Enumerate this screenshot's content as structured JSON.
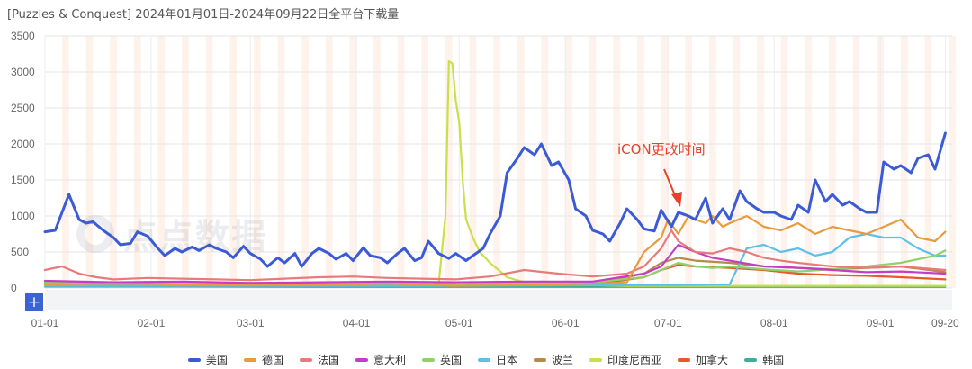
{
  "title": "[Puzzles & Conquest] 2024年01月01日-2024年09月22日全平台下载量",
  "watermark_text": "点点数据",
  "chart_data": {
    "type": "line",
    "title": "[Puzzles & Conquest] 2024年01月01日-2024年09月22日全平台下载量",
    "xlabel": "",
    "ylabel": "",
    "ylim": [
      0,
      3500
    ],
    "y_ticks": [
      0,
      500,
      1000,
      1500,
      2000,
      2500,
      3000,
      3500
    ],
    "x_ticks": [
      "01-01",
      "02-01",
      "03-01",
      "04-01",
      "05-01",
      "06-01",
      "07-01",
      "08-01",
      "09-01",
      "09-20"
    ],
    "x_tick_days": [
      0,
      31,
      60,
      91,
      121,
      152,
      182,
      213,
      244,
      263
    ],
    "x_days_range": [
      0,
      265
    ],
    "legend_position": "bottom",
    "grid": "horizontal+vertical, weekend bands shaded",
    "series": [
      {
        "name": "美国",
        "color": "#3b5bd6",
        "days": [
          0,
          3,
          5,
          7,
          10,
          12,
          14,
          17,
          20,
          22,
          25,
          27,
          30,
          33,
          35,
          38,
          40,
          43,
          45,
          48,
          50,
          53,
          55,
          58,
          60,
          63,
          65,
          68,
          70,
          73,
          75,
          78,
          80,
          83,
          85,
          88,
          90,
          93,
          95,
          98,
          100,
          103,
          105,
          108,
          110,
          112,
          115,
          118,
          120,
          123,
          125,
          128,
          130,
          133,
          135,
          138,
          140,
          143,
          145,
          148,
          150,
          153,
          155,
          158,
          160,
          163,
          165,
          168,
          170,
          173,
          175,
          178,
          180,
          183,
          185,
          188,
          190,
          193,
          195,
          198,
          200,
          203,
          205,
          208,
          210,
          213,
          215,
          218,
          220,
          223,
          225,
          228,
          230,
          233,
          235,
          238,
          240,
          243,
          245,
          248,
          250,
          253,
          255,
          258,
          260,
          263
        ],
        "values": [
          780,
          800,
          1050,
          1300,
          950,
          900,
          920,
          800,
          700,
          600,
          620,
          780,
          720,
          550,
          450,
          550,
          500,
          570,
          520,
          600,
          550,
          500,
          420,
          580,
          480,
          400,
          300,
          420,
          350,
          480,
          300,
          480,
          550,
          480,
          400,
          480,
          380,
          560,
          450,
          420,
          350,
          480,
          550,
          380,
          420,
          650,
          480,
          410,
          480,
          380,
          450,
          550,
          750,
          1000,
          1600,
          1800,
          1950,
          1850,
          2000,
          1700,
          1750,
          1500,
          1100,
          1000,
          800,
          750,
          650,
          900,
          1100,
          950,
          820,
          790,
          1080,
          850,
          1050,
          1000,
          950,
          1250,
          900,
          1100,
          950,
          1350,
          1200,
          1100,
          1050,
          1050,
          1000,
          950,
          1150,
          1050,
          1500,
          1200,
          1300,
          1150,
          1200,
          1100,
          1050,
          1050,
          1750,
          1650,
          1700,
          1600,
          1800,
          1850,
          1650,
          2150
        ]
      },
      {
        "name": "德国",
        "color": "#e89a3c",
        "days": [
          0,
          20,
          40,
          60,
          80,
          100,
          120,
          140,
          160,
          170,
          175,
          180,
          182,
          185,
          188,
          190,
          193,
          195,
          198,
          200,
          205,
          210,
          215,
          220,
          225,
          230,
          235,
          240,
          245,
          250,
          255,
          260,
          263
        ],
        "values": [
          50,
          60,
          50,
          40,
          40,
          60,
          30,
          40,
          60,
          80,
          500,
          700,
          950,
          750,
          1000,
          950,
          900,
          1000,
          850,
          900,
          1000,
          850,
          800,
          900,
          750,
          850,
          800,
          750,
          850,
          950,
          700,
          650,
          780
        ]
      },
      {
        "name": "法国",
        "color": "#e87a7a",
        "days": [
          0,
          5,
          10,
          15,
          20,
          30,
          40,
          50,
          60,
          70,
          80,
          90,
          100,
          110,
          120,
          130,
          140,
          150,
          160,
          165,
          170,
          175,
          180,
          183,
          185,
          190,
          195,
          200,
          205,
          210,
          215,
          220,
          230,
          240,
          250,
          263
        ],
        "values": [
          250,
          300,
          200,
          150,
          120,
          140,
          130,
          120,
          110,
          130,
          150,
          160,
          140,
          130,
          120,
          160,
          250,
          200,
          160,
          180,
          200,
          300,
          550,
          800,
          650,
          500,
          480,
          550,
          500,
          420,
          380,
          350,
          300,
          280,
          300,
          250
        ]
      },
      {
        "name": "意大利",
        "color": "#c53cc6",
        "days": [
          0,
          20,
          40,
          60,
          80,
          100,
          120,
          140,
          160,
          175,
          180,
          185,
          190,
          195,
          200,
          210,
          220,
          230,
          240,
          250,
          263
        ],
        "values": [
          100,
          80,
          90,
          70,
          80,
          90,
          80,
          90,
          90,
          200,
          300,
          600,
          500,
          420,
          380,
          300,
          280,
          250,
          220,
          230,
          200
        ]
      },
      {
        "name": "英国",
        "color": "#8fd26a",
        "days": [
          0,
          20,
          40,
          60,
          80,
          100,
          120,
          140,
          160,
          175,
          180,
          185,
          190,
          195,
          200,
          210,
          220,
          230,
          240,
          250,
          260,
          263
        ],
        "values": [
          80,
          70,
          60,
          70,
          60,
          70,
          50,
          70,
          80,
          150,
          250,
          350,
          300,
          280,
          300,
          260,
          230,
          260,
          300,
          350,
          450,
          520
        ]
      },
      {
        "name": "日本",
        "color": "#5ec0e8",
        "days": [
          0,
          40,
          80,
          120,
          160,
          180,
          200,
          205,
          210,
          215,
          220,
          225,
          230,
          235,
          240,
          245,
          250,
          255,
          260,
          263
        ],
        "values": [
          30,
          30,
          30,
          30,
          40,
          40,
          50,
          550,
          600,
          500,
          550,
          450,
          500,
          700,
          750,
          700,
          700,
          550,
          450,
          450
        ]
      },
      {
        "name": "波兰",
        "color": "#b58a4a",
        "days": [
          0,
          20,
          40,
          60,
          80,
          100,
          120,
          140,
          160,
          175,
          180,
          185,
          190,
          200,
          210,
          220,
          230,
          240,
          250,
          263
        ],
        "values": [
          60,
          50,
          50,
          40,
          40,
          50,
          40,
          50,
          60,
          200,
          350,
          420,
          380,
          350,
          300,
          280,
          260,
          280,
          300,
          220
        ]
      },
      {
        "name": "印度尼西亚",
        "color": "#c8e04a",
        "days": [
          0,
          20,
          40,
          60,
          80,
          100,
          110,
          115,
          117,
          118,
          119,
          120,
          121,
          122,
          123,
          125,
          127,
          130,
          135,
          140,
          145,
          150,
          160,
          170,
          180,
          200,
          220,
          240,
          263
        ],
        "values": [
          40,
          40,
          40,
          40,
          40,
          40,
          40,
          50,
          1000,
          3150,
          3120,
          2600,
          2300,
          1500,
          950,
          700,
          500,
          350,
          150,
          80,
          50,
          40,
          40,
          30,
          30,
          30,
          30,
          30,
          30
        ]
      },
      {
        "name": "加拿大",
        "color": "#e8582a",
        "days": [
          0,
          20,
          40,
          60,
          80,
          100,
          120,
          140,
          160,
          175,
          180,
          185,
          190,
          200,
          210,
          220,
          230,
          240,
          250,
          263
        ],
        "values": [
          40,
          40,
          30,
          30,
          30,
          40,
          30,
          40,
          50,
          150,
          250,
          320,
          300,
          280,
          250,
          200,
          180,
          170,
          150,
          120
        ]
      },
      {
        "name": "韩国",
        "color": "#3fae96",
        "days": [
          0,
          40,
          80,
          120,
          160,
          180,
          200,
          220,
          240,
          263
        ],
        "values": [
          20,
          20,
          15,
          15,
          15,
          15,
          15,
          15,
          15,
          15
        ]
      }
    ],
    "annotation": {
      "text": "iCON更改时间",
      "arrow_color": "#e8402a"
    }
  },
  "controls": {
    "plus_label": "+"
  }
}
